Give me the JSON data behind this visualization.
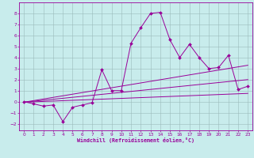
{
  "title": "",
  "xlabel": "Windchill (Refroidissement éolien,°C)",
  "bg_color": "#c8ecec",
  "grid_color": "#9bbaba",
  "line_color": "#990099",
  "xlim": [
    -0.5,
    23.5
  ],
  "ylim": [
    -2.6,
    9.0
  ],
  "xticks": [
    0,
    1,
    2,
    3,
    4,
    5,
    6,
    7,
    8,
    9,
    10,
    11,
    12,
    13,
    14,
    15,
    16,
    17,
    18,
    19,
    20,
    21,
    22,
    23
  ],
  "yticks": [
    -2,
    -1,
    0,
    1,
    2,
    3,
    4,
    5,
    6,
    7,
    8
  ],
  "series_main_x": [
    0,
    1,
    2,
    3,
    4,
    5,
    6,
    7,
    8,
    9,
    10,
    11,
    12,
    13,
    14,
    15,
    16,
    17,
    18,
    19,
    20,
    21,
    22,
    23
  ],
  "series_main_y": [
    0,
    -0.2,
    -0.4,
    -0.3,
    -1.8,
    -0.5,
    -0.3,
    -0.1,
    2.9,
    1.0,
    1.0,
    5.3,
    6.7,
    8.0,
    8.1,
    5.6,
    4.0,
    5.2,
    4.0,
    3.0,
    3.1,
    4.2,
    1.1,
    1.4
  ],
  "line1_y": [
    -0.05,
    0.75
  ],
  "line2_y": [
    -0.05,
    2.0
  ],
  "line3_y": [
    -0.05,
    3.3
  ]
}
